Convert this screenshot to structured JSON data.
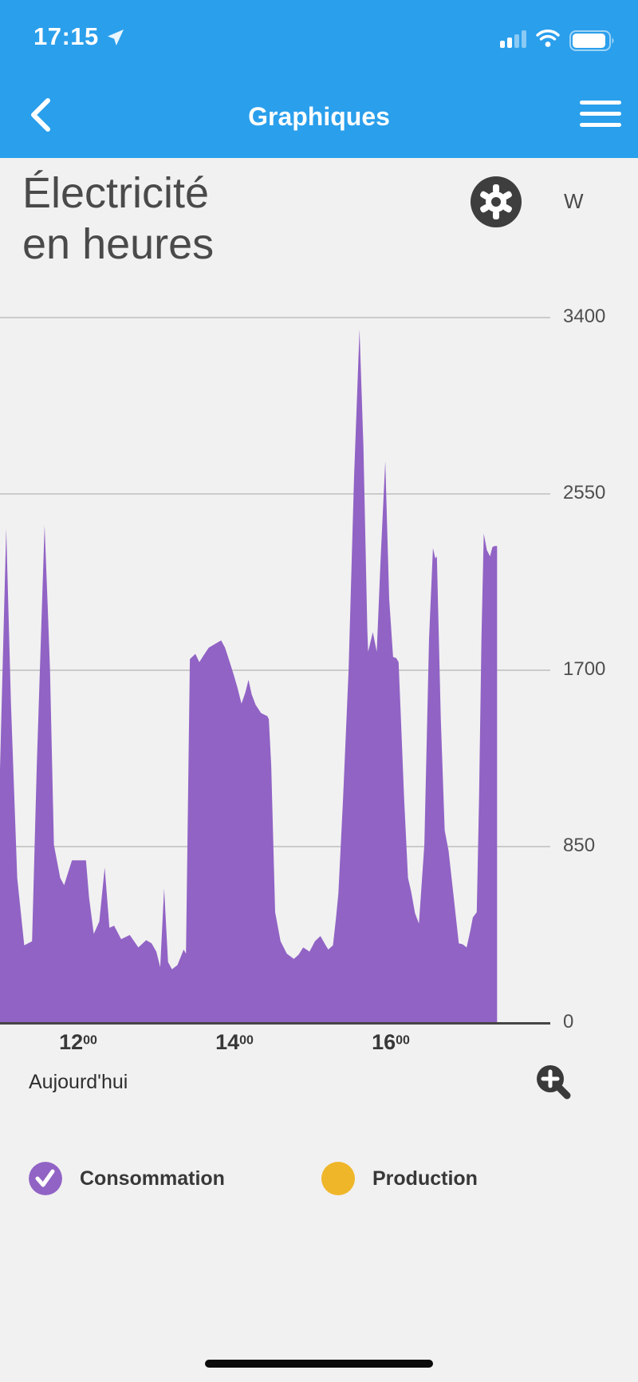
{
  "status_bar": {
    "time": "17:15",
    "battery_percent": 90,
    "signal_bars_filled": 2,
    "signal_bars_total": 4
  },
  "nav": {
    "title": "Graphiques"
  },
  "page": {
    "title_line1": "Électricité",
    "title_line2": "en heures",
    "unit": "W"
  },
  "footer": {
    "period_label": "Aujourd'hui"
  },
  "icons": {
    "location": "navigation-arrow-icon",
    "settings": "gear-icon",
    "zoom": "magnifier-plus-icon",
    "back": "chevron-left-icon",
    "menu": "hamburger-icon"
  },
  "colors": {
    "header_blue": "#2A9FEC",
    "background": "#F1F1F1",
    "consumption_purple": "#9163C5",
    "production_yellow": "#F0B62A",
    "dark_button": "#3E3E3E",
    "gridline": "#CBCBCB",
    "axis": "#454545"
  },
  "legend": [
    {
      "label": "Consommation",
      "color": "#9163C5",
      "checked": true
    },
    {
      "label": "Production",
      "color": "#F0B62A",
      "checked": false
    }
  ],
  "chart_data": {
    "type": "area",
    "title": "Électricité en heures",
    "unit": "W",
    "ylabel": "W",
    "ylim": [
      0,
      3400
    ],
    "y_ticks": [
      3400,
      2550,
      1700,
      850,
      0
    ],
    "x_ticks": [
      {
        "main": "12",
        "sup": "00",
        "hour": 12
      },
      {
        "main": "14",
        "sup": "00",
        "hour": 14
      },
      {
        "main": "16",
        "sup": "00",
        "hour": 16
      }
    ],
    "x_range_hours": [
      11.0,
      17.36
    ],
    "grid": true,
    "legend_position": "bottom",
    "series": [
      {
        "name": "Consommation",
        "color": "#9163C5",
        "visible": true,
        "points": [
          [
            11.0,
            1220
          ],
          [
            11.08,
            2380
          ],
          [
            11.14,
            1540
          ],
          [
            11.22,
            695
          ],
          [
            11.31,
            370
          ],
          [
            11.41,
            390
          ],
          [
            11.47,
            1235
          ],
          [
            11.57,
            2395
          ],
          [
            11.61,
            2005
          ],
          [
            11.64,
            1700
          ],
          [
            11.69,
            855
          ],
          [
            11.77,
            695
          ],
          [
            11.82,
            660
          ],
          [
            11.92,
            780
          ],
          [
            12.1,
            780
          ],
          [
            12.14,
            600
          ],
          [
            12.2,
            425
          ],
          [
            12.27,
            485
          ],
          [
            12.34,
            745
          ],
          [
            12.4,
            455
          ],
          [
            12.46,
            465
          ],
          [
            12.55,
            400
          ],
          [
            12.66,
            420
          ],
          [
            12.77,
            360
          ],
          [
            12.87,
            395
          ],
          [
            12.94,
            380
          ],
          [
            13.0,
            340
          ],
          [
            13.05,
            265
          ],
          [
            13.1,
            645
          ],
          [
            13.15,
            290
          ],
          [
            13.2,
            255
          ],
          [
            13.27,
            275
          ],
          [
            13.35,
            350
          ],
          [
            13.38,
            330
          ],
          [
            13.43,
            1750
          ],
          [
            13.5,
            1775
          ],
          [
            13.55,
            1735
          ],
          [
            13.6,
            1765
          ],
          [
            13.67,
            1805
          ],
          [
            13.76,
            1825
          ],
          [
            13.83,
            1840
          ],
          [
            13.88,
            1805
          ],
          [
            13.94,
            1735
          ],
          [
            13.99,
            1675
          ],
          [
            14.04,
            1610
          ],
          [
            14.09,
            1535
          ],
          [
            14.14,
            1590
          ],
          [
            14.18,
            1650
          ],
          [
            14.22,
            1580
          ],
          [
            14.27,
            1530
          ],
          [
            14.34,
            1490
          ],
          [
            14.42,
            1475
          ],
          [
            14.44,
            1460
          ],
          [
            14.47,
            1235
          ],
          [
            14.52,
            530
          ],
          [
            14.59,
            390
          ],
          [
            14.67,
            330
          ],
          [
            14.76,
            305
          ],
          [
            14.82,
            325
          ],
          [
            14.88,
            360
          ],
          [
            14.96,
            340
          ],
          [
            15.03,
            390
          ],
          [
            15.1,
            415
          ],
          [
            15.16,
            375
          ],
          [
            15.2,
            350
          ],
          [
            15.26,
            370
          ],
          [
            15.3,
            505
          ],
          [
            15.33,
            620
          ],
          [
            15.39,
            1080
          ],
          [
            15.46,
            1695
          ],
          [
            15.53,
            2620
          ],
          [
            15.6,
            3340
          ],
          [
            15.65,
            2775
          ],
          [
            15.7,
            1890
          ],
          [
            15.71,
            1785
          ],
          [
            15.77,
            1880
          ],
          [
            15.82,
            1785
          ],
          [
            15.87,
            2235
          ],
          [
            15.93,
            2705
          ],
          [
            15.98,
            2040
          ],
          [
            16.03,
            1760
          ],
          [
            16.07,
            1755
          ],
          [
            16.1,
            1735
          ],
          [
            16.13,
            1465
          ],
          [
            16.17,
            1080
          ],
          [
            16.22,
            695
          ],
          [
            16.26,
            630
          ],
          [
            16.31,
            525
          ],
          [
            16.36,
            475
          ],
          [
            16.43,
            855
          ],
          [
            16.49,
            1850
          ],
          [
            16.54,
            2285
          ],
          [
            16.57,
            2235
          ],
          [
            16.59,
            2245
          ],
          [
            16.64,
            1465
          ],
          [
            16.69,
            925
          ],
          [
            16.74,
            825
          ],
          [
            16.8,
            620
          ],
          [
            16.87,
            380
          ],
          [
            16.92,
            375
          ],
          [
            16.97,
            360
          ],
          [
            17.02,
            445
          ],
          [
            17.05,
            505
          ],
          [
            17.1,
            530
          ],
          [
            17.13,
            1080
          ],
          [
            17.16,
            1850
          ],
          [
            17.19,
            2355
          ],
          [
            17.23,
            2275
          ],
          [
            17.27,
            2245
          ],
          [
            17.3,
            2290
          ],
          [
            17.33,
            2295
          ],
          [
            17.36,
            2295
          ]
        ]
      },
      {
        "name": "Production",
        "color": "#F0B62A",
        "visible": false,
        "points": []
      }
    ]
  }
}
